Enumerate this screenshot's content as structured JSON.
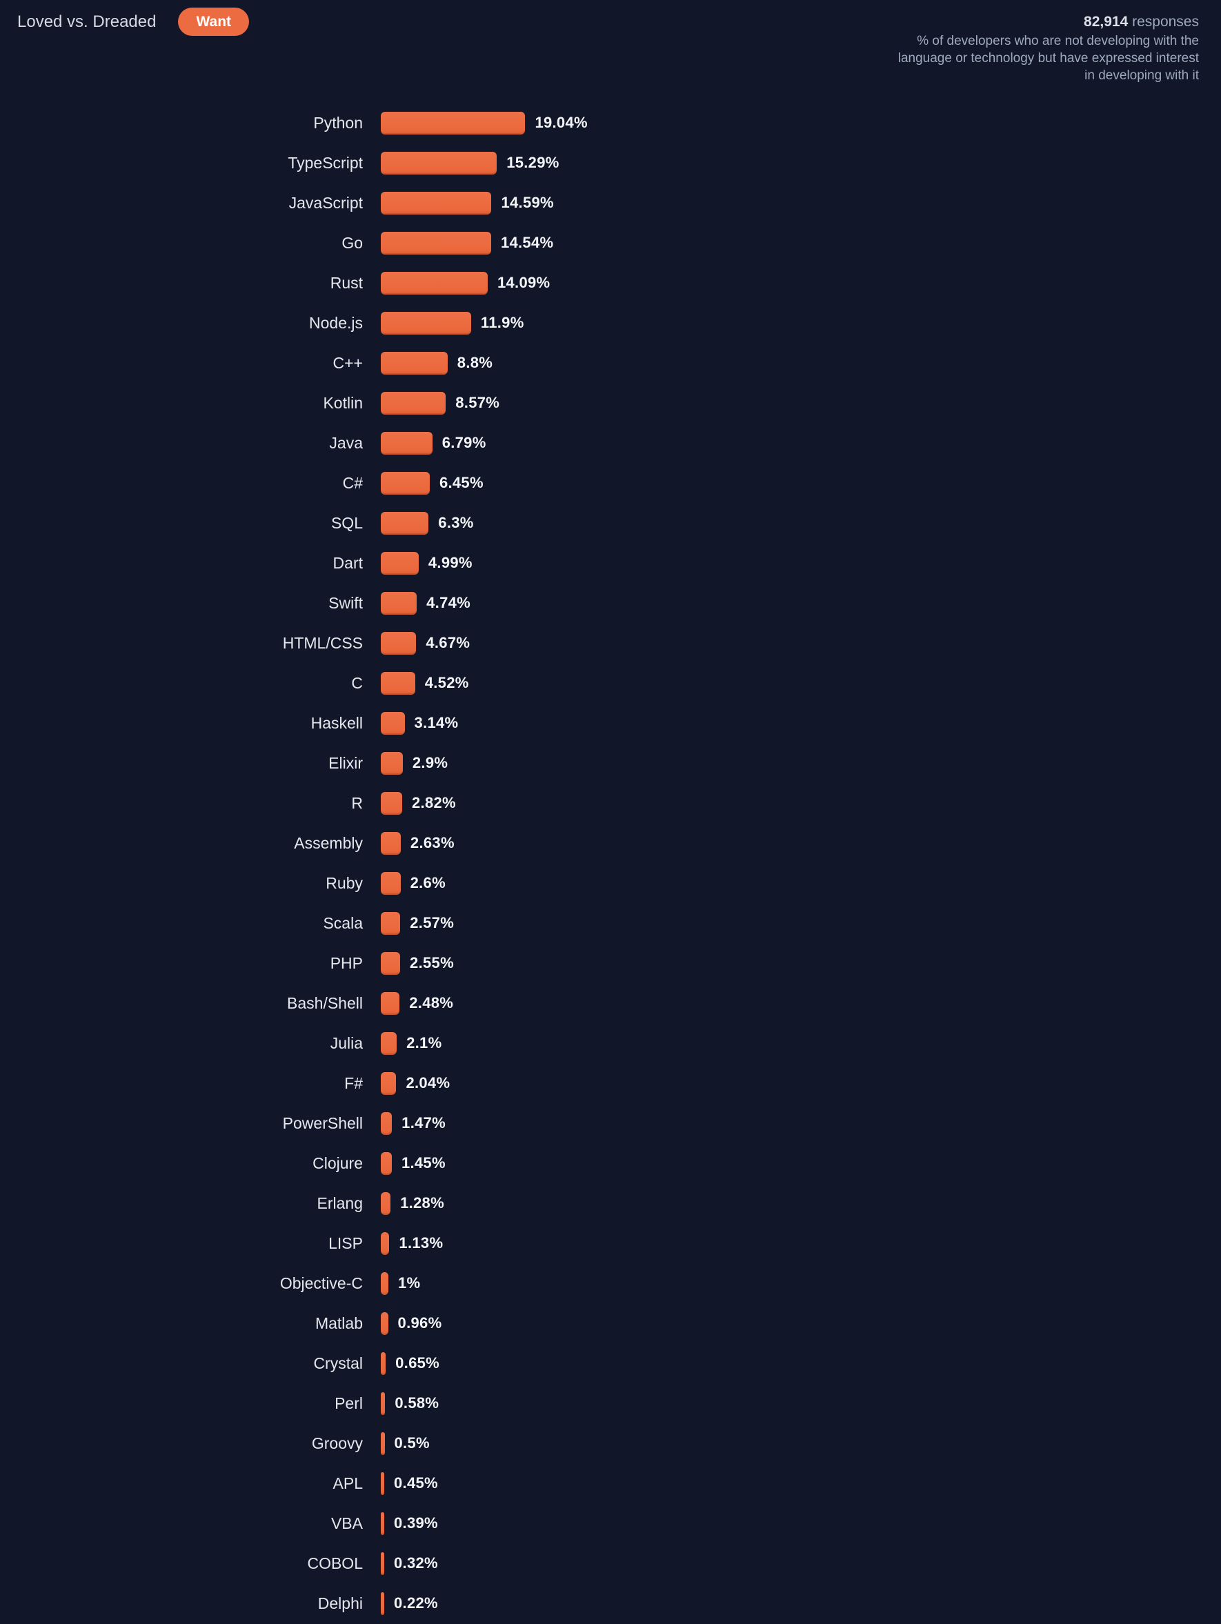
{
  "page": {
    "background_color": "#111729",
    "accent_color": "#EC6B40"
  },
  "header": {
    "toggle_inactive_label": "Loved vs. Dreaded",
    "toggle_active_label": "Want",
    "responses_count": "82,914",
    "responses_suffix": " responses",
    "description_lines": [
      "% of developers who are not developing with the",
      "language or technology but have expressed interest",
      "in developing with it"
    ]
  },
  "chart_data": {
    "type": "bar",
    "orientation": "horizontal",
    "title": "Want",
    "subtitle": "% of developers who are not developing with the language or technology but have expressed interest in developing with it",
    "unit": "%",
    "xlim": [
      0,
      20
    ],
    "grid": false,
    "legend": "none",
    "bar_color": "#EC6B40",
    "categories": [
      "Python",
      "TypeScript",
      "JavaScript",
      "Go",
      "Rust",
      "Node.js",
      "C++",
      "Kotlin",
      "Java",
      "C#",
      "SQL",
      "Dart",
      "Swift",
      "HTML/CSS",
      "C",
      "Haskell",
      "Elixir",
      "R",
      "Assembly",
      "Ruby",
      "Scala",
      "PHP",
      "Bash/Shell",
      "Julia",
      "F#",
      "PowerShell",
      "Clojure",
      "Erlang",
      "LISP",
      "Objective-C",
      "Matlab",
      "Crystal",
      "Perl",
      "Groovy",
      "APL",
      "VBA",
      "COBOL",
      "Delphi"
    ],
    "values": [
      19.04,
      15.29,
      14.59,
      14.54,
      14.09,
      11.9,
      8.8,
      8.57,
      6.79,
      6.45,
      6.3,
      4.99,
      4.74,
      4.67,
      4.52,
      3.14,
      2.9,
      2.82,
      2.63,
      2.6,
      2.57,
      2.55,
      2.48,
      2.1,
      2.04,
      1.47,
      1.45,
      1.28,
      1.13,
      1,
      0.96,
      0.65,
      0.58,
      0.5,
      0.45,
      0.39,
      0.32,
      0.22
    ],
    "value_labels": [
      "19.04%",
      "15.29%",
      "14.59%",
      "14.54%",
      "14.09%",
      "11.9%",
      "8.8%",
      "8.57%",
      "6.79%",
      "6.45%",
      "6.3%",
      "4.99%",
      "4.74%",
      "4.67%",
      "4.52%",
      "3.14%",
      "2.9%",
      "2.82%",
      "2.63%",
      "2.6%",
      "2.57%",
      "2.55%",
      "2.48%",
      "2.1%",
      "2.04%",
      "1.47%",
      "1.45%",
      "1.28%",
      "1.13%",
      "1%",
      "0.96%",
      "0.65%",
      "0.58%",
      "0.5%",
      "0.45%",
      "0.39%",
      "0.32%",
      "0.22%"
    ]
  }
}
